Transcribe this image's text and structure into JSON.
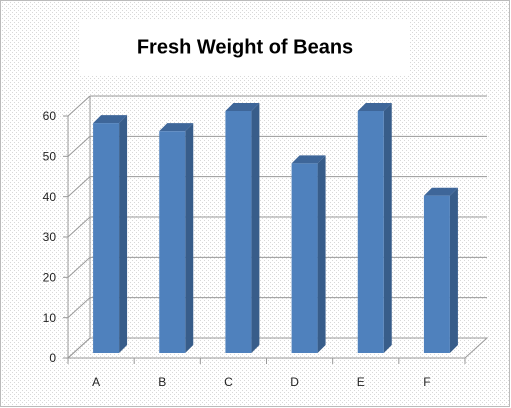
{
  "chart_data": {
    "type": "bar",
    "title": "Fresh Weight of Beans",
    "categories": [
      "A",
      "B",
      "C",
      "D",
      "E",
      "F"
    ],
    "values": [
      57,
      55,
      60,
      47,
      60,
      39
    ],
    "color": "#4f81bd",
    "ylim": [
      0,
      60
    ],
    "yticks": [
      0,
      10,
      20,
      30,
      40,
      50,
      60
    ],
    "grid": true
  }
}
